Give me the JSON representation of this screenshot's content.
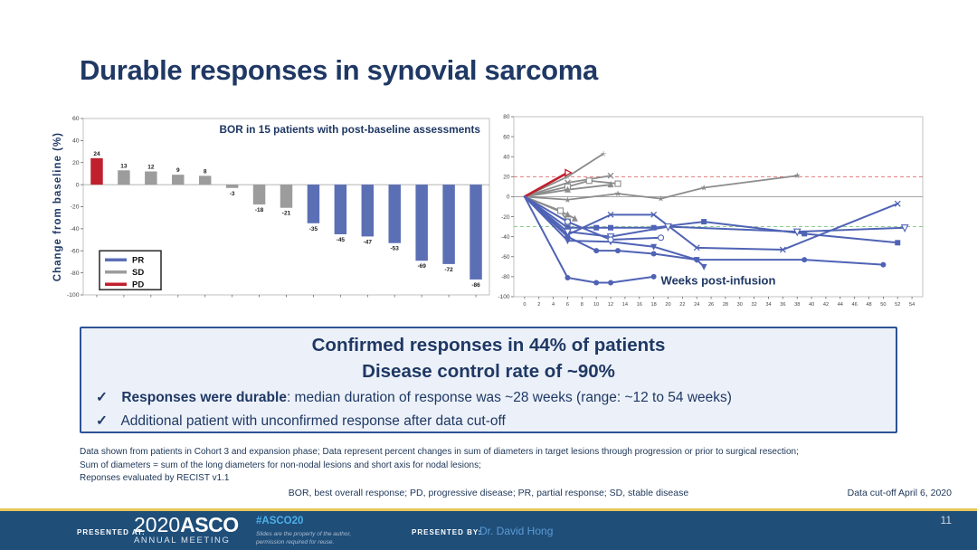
{
  "slide": {
    "title": "Durable responses in synovial sarcoma",
    "page_number": "11"
  },
  "summary_box": {
    "line1": "Confirmed responses in 44% of patients",
    "line2": "Disease control rate of ~90%",
    "check": "✓",
    "bullet1_bold": "Responses were durable",
    "bullet1_rest": ": median duration of response was ~28 weeks (range: ~12 to 54 weeks)",
    "bullet2": "Additional patient with unconfirmed response after data cut-off"
  },
  "footnotes": {
    "line1": "Data shown from patients in Cohort 3 and expansion phase; Data represent percent changes in sum of diameters in target lesions through progression or prior to surgical resection;",
    "line2": "Sum of diameters = sum of the long diameters for non-nodal lesions and short axis for nodal lesions;",
    "line3": "Reponses evaluated by RECIST v1.1",
    "abbreviations": "BOR, best overall response; PD, progressive disease; PR, partial response; SD, stable disease",
    "data_cutoff": "Data cut-off April 6, 2020"
  },
  "footer": {
    "presented_at_label": "PRESENTED AT:",
    "logo_year": "2020",
    "logo_name": "ASCO",
    "logo_sub": "ANNUAL MEETING",
    "hashtag": "#ASCO20",
    "disclaimer_line1": "Slides are the property of the author,",
    "disclaimer_line2": "permission required for reuse.",
    "presented_by_label": "PRESENTED BY:",
    "presenter": "Dr. David Hong"
  },
  "chart_data": [
    {
      "type": "bar",
      "title": "BOR in 15 patients with post-baseline assessments",
      "ylabel": "Change from baseline (%)",
      "ylim": [
        -100,
        60
      ],
      "yticks": [
        60,
        40,
        20,
        0,
        -20,
        -40,
        -60,
        -80,
        -100
      ],
      "values": [
        24,
        13,
        12,
        9,
        8,
        -3,
        -18,
        -21,
        -35,
        -45,
        -47,
        -53,
        -69,
        -72,
        -86
      ],
      "groups": [
        "PD",
        "SD",
        "SD",
        "SD",
        "SD",
        "SD",
        "SD",
        "SD",
        "PR",
        "PR",
        "PR",
        "PR",
        "PR",
        "PR",
        "PR"
      ],
      "group_colors": {
        "PR": "#5b6fb5",
        "SD": "#9c9c9c",
        "PD": "#c0202e"
      },
      "legend": [
        {
          "label": "PR",
          "color": "#5b6fb5"
        },
        {
          "label": "SD",
          "color": "#9c9c9c"
        },
        {
          "label": "PD",
          "color": "#c0202e"
        }
      ]
    },
    {
      "type": "line",
      "xlabel": "Weeks post-infusion",
      "xlim": [
        -1.5,
        55.5
      ],
      "ylim": [
        -100,
        80
      ],
      "yticks": [
        80,
        60,
        40,
        20,
        0,
        -20,
        -40,
        -60,
        -80,
        -100
      ],
      "xticks": [
        0,
        2,
        4,
        6,
        8,
        10,
        12,
        14,
        16,
        18,
        20,
        22,
        24,
        26,
        28,
        30,
        32,
        34,
        36,
        38,
        40,
        42,
        44,
        46,
        48,
        50,
        52,
        54
      ],
      "reference_lines": [
        {
          "y": 20,
          "color": "#e06666",
          "dash": true
        },
        {
          "y": 0,
          "color": "#999999",
          "dash": false
        },
        {
          "y": -30,
          "color": "#7fc47f",
          "dash": true
        }
      ],
      "series": [
        {
          "group": "SD",
          "color": "#8c8c8c",
          "marker": "star-open",
          "points": [
            [
              0,
              0
            ],
            [
              6,
              20
            ],
            [
              11,
              43
            ]
          ]
        },
        {
          "group": "SD",
          "color": "#8c8c8c",
          "marker": "x",
          "points": [
            [
              0,
              0
            ],
            [
              6,
              14
            ],
            [
              12,
              21
            ]
          ]
        },
        {
          "group": "SD",
          "color": "#8c8c8c",
          "marker": "square-open",
          "points": [
            [
              0,
              0
            ],
            [
              6,
              10
            ],
            [
              9,
              16
            ],
            [
              13,
              13
            ]
          ]
        },
        {
          "group": "SD",
          "color": "#8c8c8c",
          "marker": "tri-up",
          "points": [
            [
              0,
              0
            ],
            [
              6,
              7
            ],
            [
              12,
              12
            ]
          ]
        },
        {
          "group": "SD",
          "color": "#8c8c8c",
          "marker": "star",
          "points": [
            [
              0,
              0
            ],
            [
              6,
              -3
            ],
            [
              13,
              3
            ],
            [
              19,
              -2
            ],
            [
              25,
              9
            ],
            [
              38,
              21
            ]
          ]
        },
        {
          "group": "SD",
          "color": "#8c8c8c",
          "marker": "tri-up",
          "points": [
            [
              0,
              0
            ],
            [
              6,
              -18
            ],
            [
              7,
              -22
            ]
          ]
        },
        {
          "group": "SD",
          "color": "#8c8c8c",
          "marker": "square-open",
          "points": [
            [
              0,
              0
            ],
            [
              5,
              -14
            ],
            [
              6,
              -25
            ]
          ]
        },
        {
          "group": "PD",
          "color": "#c0202e",
          "marker": "arrow-right",
          "points": [
            [
              0,
              0
            ],
            [
              6,
              24
            ]
          ]
        },
        {
          "group": "PR",
          "color": "#4f63b5",
          "marker": "circle",
          "points": [
            [
              0,
              0
            ],
            [
              6,
              -81
            ],
            [
              10,
              -86
            ],
            [
              12,
              -86
            ],
            [
              18,
              -80
            ]
          ]
        },
        {
          "group": "PR",
          "color": "#4f63b5",
          "marker": "circle",
          "points": [
            [
              0,
              0
            ],
            [
              6,
              -40
            ],
            [
              10,
              -54
            ],
            [
              13,
              -54
            ],
            [
              18,
              -57
            ],
            [
              24,
              -63
            ],
            [
              39,
              -63
            ],
            [
              50,
              -68
            ]
          ]
        },
        {
          "group": "PR",
          "color": "#4f63b5",
          "marker": "x",
          "points": [
            [
              0,
              0
            ],
            [
              6,
              -38
            ],
            [
              12,
              -18
            ],
            [
              18,
              -18
            ],
            [
              24,
              -51
            ],
            [
              36,
              -53
            ],
            [
              52,
              -7
            ]
          ]
        },
        {
          "group": "PR",
          "color": "#4f63b5",
          "marker": "square",
          "points": [
            [
              0,
              0
            ],
            [
              6,
              -31
            ],
            [
              10,
              -31
            ],
            [
              12,
              -31
            ],
            [
              18,
              -31
            ],
            [
              25,
              -25
            ],
            [
              39,
              -37
            ],
            [
              52,
              -46
            ]
          ]
        },
        {
          "group": "PR",
          "color": "#4f63b5",
          "marker": "tri-down-open",
          "points": [
            [
              0,
              0
            ],
            [
              6,
              -35
            ],
            [
              12,
              -40
            ],
            [
              20,
              -30
            ],
            [
              38,
              -35
            ],
            [
              53,
              -31
            ]
          ]
        },
        {
          "group": "PR",
          "color": "#4f63b5",
          "marker": "tri-down",
          "points": [
            [
              0,
              0
            ],
            [
              6,
              -44
            ],
            [
              12,
              -45
            ],
            [
              18,
              -50
            ],
            [
              24,
              -63
            ],
            [
              25,
              -70
            ]
          ]
        },
        {
          "group": "PR",
          "color": "#4f63b5",
          "marker": "circle-open",
          "points": [
            [
              0,
              0
            ],
            [
              6,
              -25
            ],
            [
              12,
              -43
            ],
            [
              19,
              -41
            ]
          ]
        }
      ]
    }
  ]
}
